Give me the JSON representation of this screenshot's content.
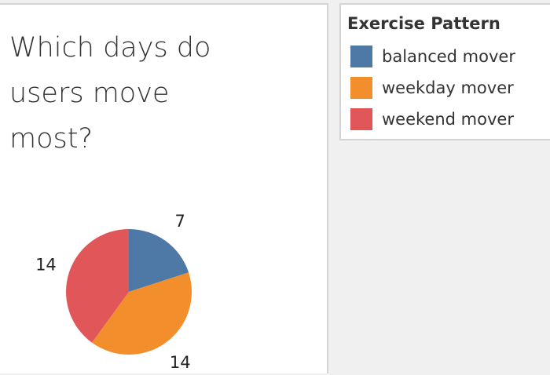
{
  "chart_data": {
    "type": "pie",
    "title": "Which days do users move most?",
    "legend_title": "Exercise Pattern",
    "legend_position": "top-right",
    "categories": [
      "balanced mover",
      "weekday mover",
      "weekend mover"
    ],
    "values": [
      7,
      14,
      14
    ],
    "colors": [
      "#4e79a7",
      "#f28e2b",
      "#e15759"
    ]
  }
}
